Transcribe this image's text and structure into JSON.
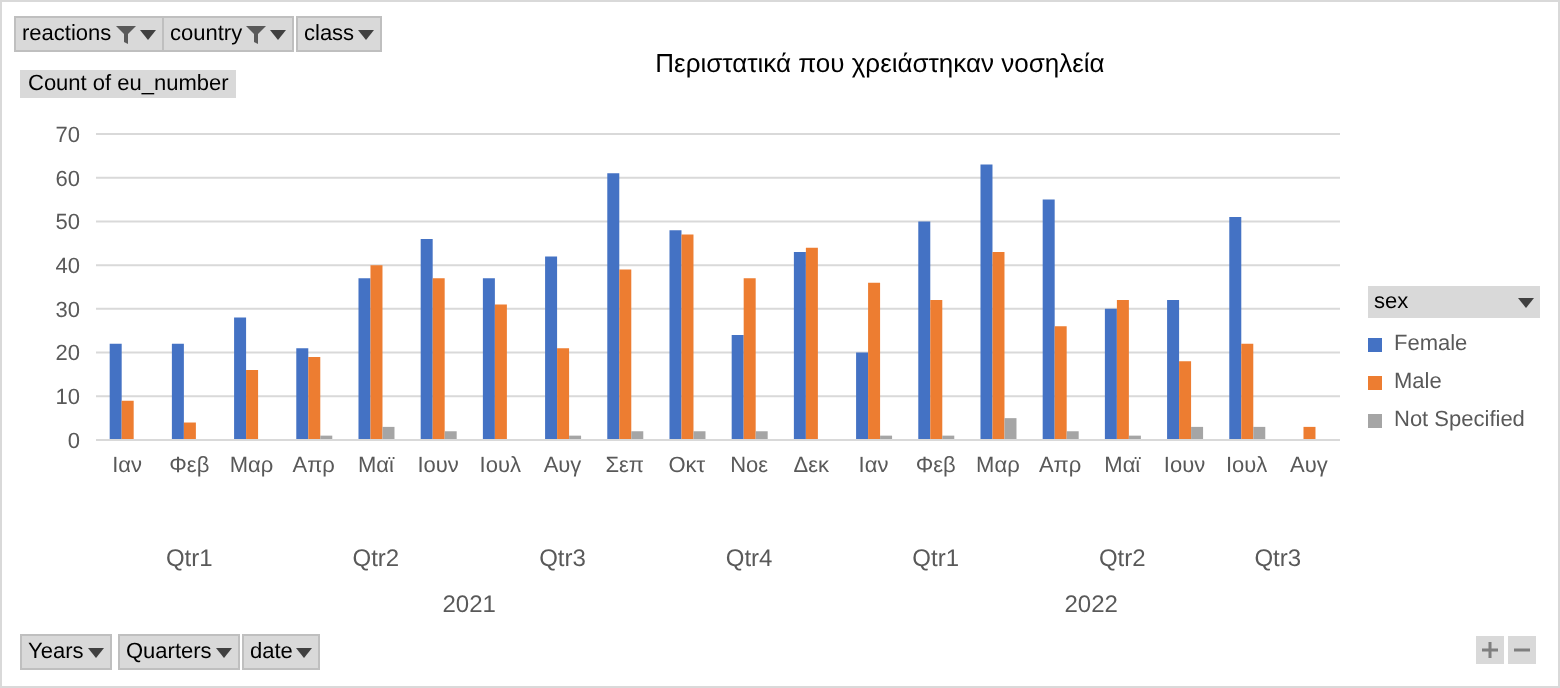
{
  "chart_data": {
    "type": "bar",
    "title": "Περιστατικά που χρειάστηκαν νοσηλεία",
    "ylabel": "Count of eu_number",
    "legend_title": "sex",
    "categories": [
      "Ιαν",
      "Φεβ",
      "Μαρ",
      "Απρ",
      "Μαϊ",
      "Ιουν",
      "Ιουλ",
      "Αυγ",
      "Σεπ",
      "Οκτ",
      "Νοε",
      "Δεκ",
      "Ιαν",
      "Φεβ",
      "Μαρ",
      "Απρ",
      "Μαϊ",
      "Ιουν",
      "Ιουλ",
      "Αυγ"
    ],
    "series": [
      {
        "name": "Female",
        "color": "#4472c4",
        "values": [
          22,
          22,
          28,
          21,
          37,
          46,
          37,
          42,
          61,
          48,
          24,
          43,
          20,
          50,
          63,
          55,
          30,
          32,
          51,
          null
        ]
      },
      {
        "name": "Male",
        "color": "#ed7d31",
        "values": [
          9,
          4,
          16,
          19,
          40,
          37,
          31,
          21,
          39,
          47,
          37,
          44,
          36,
          32,
          43,
          26,
          32,
          18,
          22,
          3
        ]
      },
      {
        "name": "Not Specified",
        "color": "#a5a5a5",
        "values": [
          null,
          null,
          null,
          1,
          3,
          2,
          null,
          1,
          2,
          2,
          2,
          null,
          1,
          1,
          5,
          2,
          1,
          3,
          3,
          null
        ]
      }
    ],
    "ylim": [
      0,
      70
    ],
    "yticks": [
      0,
      10,
      20,
      30,
      40,
      50,
      60,
      70
    ],
    "grid": "y",
    "legend": "right",
    "annotations": [
      "reactions",
      "country",
      "class",
      "Qtr1",
      "Qtr2",
      "Qtr3",
      "Qtr4",
      "Qtr1",
      "Qtr2",
      "Qtr3",
      "2021",
      "2022",
      "Years",
      "Quarters",
      "date"
    ]
  }
}
